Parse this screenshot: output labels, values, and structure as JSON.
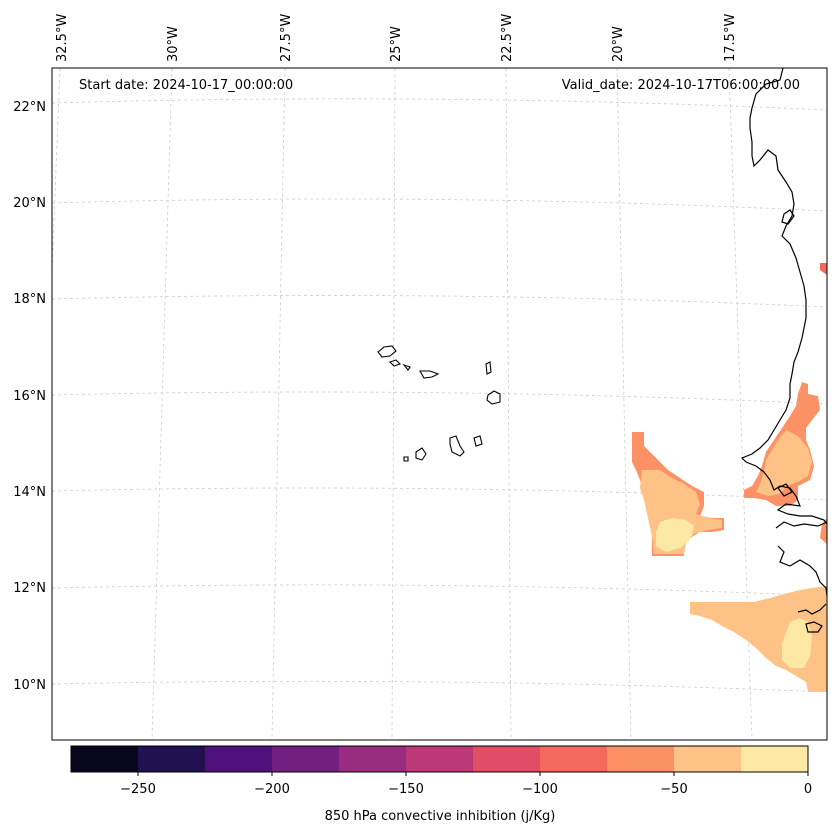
{
  "header": {
    "start_date": "Start date: 2024-10-17_00:00:00",
    "valid_date": "Valid_date: 2024-10-17T06:00:00.00"
  },
  "lon_labels": [
    "32.5°W",
    "30°W",
    "27.5°W",
    "25°W",
    "22.5°W",
    "20°W",
    "17.5°W"
  ],
  "lat_labels": [
    "22°N",
    "20°N",
    "18°N",
    "16°N",
    "14°N",
    "12°N",
    "10°N"
  ],
  "colorbar": {
    "label": "850 hPa convective inhibition (j/Kg)",
    "ticks": [
      "−250",
      "−200",
      "−150",
      "−100",
      "−50",
      "0"
    ],
    "levels": [
      -275,
      -250,
      -225,
      -200,
      -175,
      -150,
      -125,
      -100,
      -75,
      -50,
      -25,
      0
    ],
    "colors": [
      "#07061c",
      "#221150",
      "#4f117b",
      "#731f81",
      "#982c80",
      "#bc3978",
      "#e04e65",
      "#f3695c",
      "#fb9164",
      "#fec287",
      "#fde8a4"
    ]
  },
  "fields": {
    "level_colors": {
      "-100_-75": "#f3695c",
      "-75_-50": "#fb9164",
      "-50_-25": "#fec287",
      "-25_0": "#fde8a4"
    }
  }
}
